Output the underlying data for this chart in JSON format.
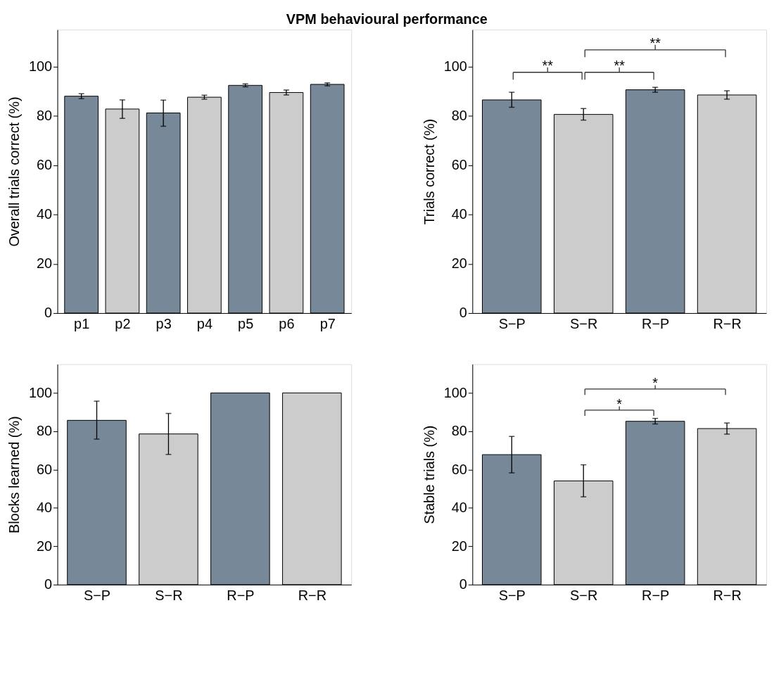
{
  "chart_data": [
    {
      "type": "bar",
      "title": "VPM behavioural performance",
      "ylabel": "Overall trials correct (%)",
      "categories": [
        "p1",
        "p2",
        "p3",
        "p4",
        "p5",
        "p6",
        "p7"
      ],
      "values": [
        88,
        82.8,
        81.2,
        87.6,
        92.4,
        89.5,
        92.8
      ],
      "errors": [
        1,
        [
          79,
          86.5
        ],
        [
          75.8,
          86.4
        ],
        0.8,
        0.6,
        1,
        0.6
      ],
      "colors": [
        "#778899",
        "#cccccc",
        "#778899",
        "#cccccc",
        "#778899",
        "#cccccc",
        "#778899"
      ],
      "ylim": [
        0,
        115
      ],
      "yticks": [
        0,
        20,
        40,
        60,
        80,
        100
      ],
      "grid": false
    },
    {
      "type": "bar",
      "ylabel": "Trials correct (%)",
      "categories": [
        "S−P",
        "S−R",
        "R−P",
        "R−R"
      ],
      "values": [
        86.5,
        80.6,
        90.6,
        88.5
      ],
      "errors": [
        [
          83.5,
          89.6
        ],
        [
          78.3,
          83
        ],
        1,
        [
          86.8,
          90.2
        ]
      ],
      "colors": [
        "#778899",
        "#cccccc",
        "#778899",
        "#cccccc"
      ],
      "annotations": [
        "**",
        "**",
        "**"
      ],
      "ylim": [
        0,
        115
      ],
      "yticks": [
        0,
        20,
        40,
        60,
        80,
        100
      ],
      "grid": false
    },
    {
      "type": "bar",
      "ylabel": "Blocks learned (%)",
      "categories": [
        "S−P",
        "S−R",
        "R−P",
        "R−R"
      ],
      "values": [
        85.7,
        78.6,
        100,
        100
      ],
      "errors": [
        [
          75.9,
          95.7
        ],
        [
          67.9,
          89.3
        ],
        null,
        null
      ],
      "colors": [
        "#778899",
        "#cccccc",
        "#778899",
        "#cccccc"
      ],
      "ylim": [
        0,
        115
      ],
      "yticks": [
        0,
        20,
        40,
        60,
        80,
        100
      ],
      "grid": false
    },
    {
      "type": "bar",
      "ylabel": "Stable trials (%)",
      "categories": [
        "S−P",
        "S−R",
        "R−P",
        "R−R"
      ],
      "values": [
        67.8,
        54.1,
        85.2,
        81.4
      ],
      "errors": [
        [
          58.3,
          77.3
        ],
        [
          45.8,
          62.5
        ],
        [
          83.8,
          86.7
        ],
        [
          78.5,
          84.3
        ]
      ],
      "colors": [
        "#778899",
        "#cccccc",
        "#778899",
        "#cccccc"
      ],
      "annotations": [
        "*",
        "*"
      ],
      "ylim": [
        0,
        115
      ],
      "yticks": [
        0,
        20,
        40,
        60,
        80,
        100
      ],
      "grid": false
    }
  ]
}
